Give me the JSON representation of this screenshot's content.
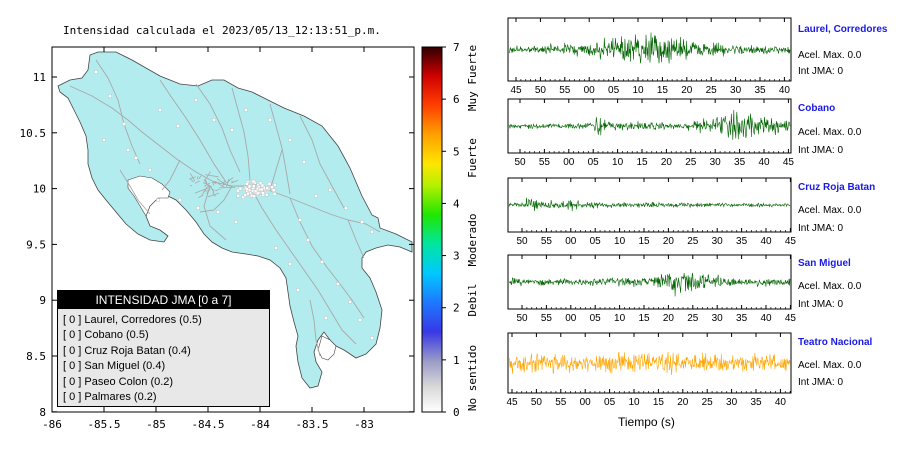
{
  "map": {
    "title": "Intensidad calculada el 2023/05/13_12:13:51_p.m.",
    "x_ticks": [
      "-86",
      "-85.5",
      "-85",
      "-84.5",
      "-84",
      "-83.5",
      "-83"
    ],
    "y_ticks": [
      "11",
      "10.5",
      "10",
      "9.5",
      "9",
      "8.5",
      "8"
    ],
    "fill_color": "#b3ecee",
    "road_color": "#a8a8a8",
    "station_color": "#ffffff"
  },
  "colorbar": {
    "ticks": [
      "7",
      "6",
      "5",
      "4",
      "3",
      "2",
      "1",
      "0"
    ],
    "labels": [
      "Muy Fuerte",
      "Fuerte",
      "Moderado",
      "Debil",
      "No sentido"
    ]
  },
  "legend": {
    "title": "INTENSIDAD JMA [0 a 7]",
    "items": [
      "[ 0 ]  Laurel, Corredores (0.5)",
      "[ 0 ]  Cobano (0.5)",
      "[ 0 ]  Cruz Roja Batan (0.4)",
      "[ 0 ]  San Miguel (0.4)",
      "[ 0 ]  Paseo Colon (0.2)",
      "[ 0 ]  Palmares (0.2)"
    ]
  },
  "traces": {
    "xlabel": "Tiempo (s)",
    "stations": [
      {
        "name": "Laurel, Corredores",
        "accel": "Acel. Max. 0.0",
        "int": "Int JMA: 0",
        "color": "#006400",
        "ticks": [
          "45",
          "50",
          "55",
          "00",
          "05",
          "10",
          "15",
          "20",
          "25",
          "30",
          "35",
          "40"
        ]
      },
      {
        "name": "Cobano",
        "accel": "Acel. Max. 0.0",
        "int": "Int JMA: 0",
        "color": "#006400",
        "ticks": [
          "50",
          "55",
          "00",
          "05",
          "10",
          "15",
          "20",
          "25",
          "30",
          "35",
          "40",
          "45"
        ]
      },
      {
        "name": "Cruz Roja Batan",
        "accel": "Acel. Max. 0.0",
        "int": "Int JMA: 0",
        "color": "#006400",
        "ticks": [
          "50",
          "55",
          "00",
          "05",
          "10",
          "15",
          "20",
          "25",
          "30",
          "35",
          "40",
          "45"
        ]
      },
      {
        "name": "San Miguel",
        "accel": "Acel. Max. 0.0",
        "int": "Int JMA: 0",
        "color": "#006400",
        "ticks": [
          "50",
          "55",
          "00",
          "05",
          "10",
          "15",
          "20",
          "25",
          "30",
          "35",
          "40",
          "45"
        ]
      },
      {
        "name": "Teatro Nacional",
        "accel": "Acel. Max. 0.0",
        "int": "Int JMA: 0",
        "color": "#ffa500",
        "ticks": [
          "45",
          "50",
          "55",
          "00",
          "05",
          "10",
          "15",
          "20",
          "25",
          "30",
          "35",
          "40"
        ]
      }
    ]
  }
}
